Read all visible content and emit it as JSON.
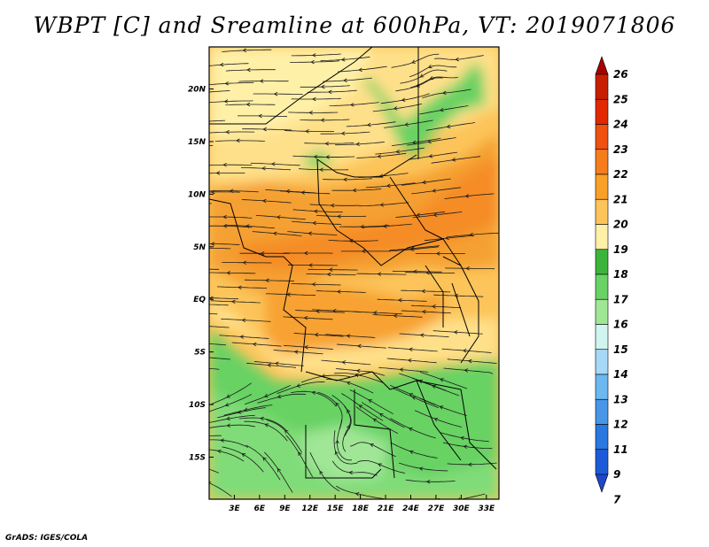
{
  "title": "WBPT [C] and Sreamline at 600hPa, VT: 2019071806",
  "credit": "GrADS: IGES/COLA",
  "map": {
    "lat_labels": [
      "20N",
      "15N",
      "10N",
      "5N",
      "EQ",
      "5S",
      "10S",
      "15S"
    ],
    "lon_labels": [
      "3E",
      "6E",
      "9E",
      "12E",
      "15E",
      "18E",
      "21E",
      "24E",
      "27E",
      "30E",
      "33E"
    ],
    "lat_range": [
      -19,
      24
    ],
    "lon_range": [
      0,
      34.5
    ]
  },
  "colorbar": {
    "labels": [
      "26",
      "25",
      "24",
      "23",
      "22",
      "21",
      "20",
      "19",
      "18",
      "17",
      "16",
      "15",
      "14",
      "13",
      "12",
      "11",
      "9",
      "7"
    ],
    "colors": [
      "#a50000",
      "#c81e00",
      "#e12800",
      "#f05010",
      "#f57d1e",
      "#f8a028",
      "#fcc45a",
      "#fff0a8",
      "#3cb43c",
      "#68d264",
      "#a0e696",
      "#d0f5f0",
      "#a8d8f8",
      "#6cb8f0",
      "#4896e6",
      "#2878e0",
      "#1e5ad8",
      "#1e46c8"
    ]
  }
}
